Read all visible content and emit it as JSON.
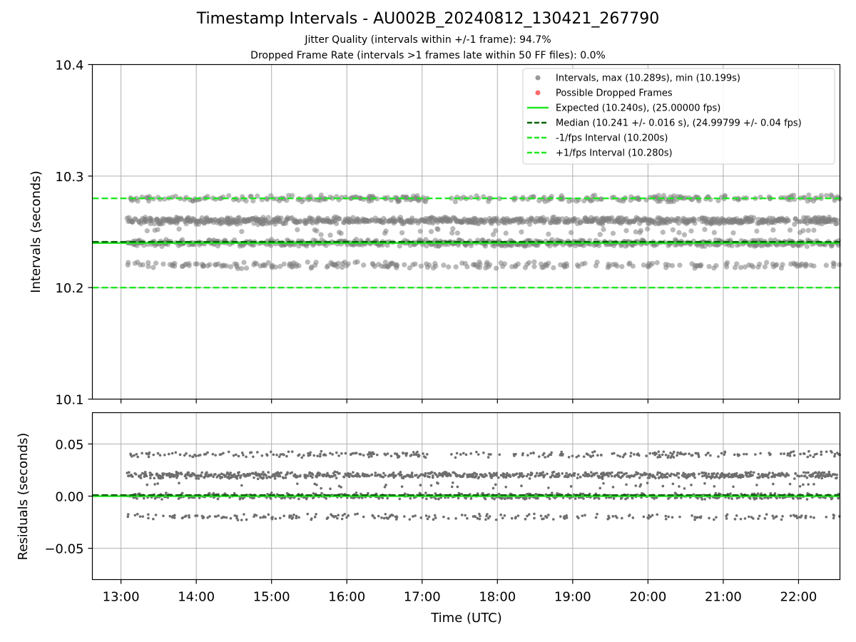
{
  "title": "Timestamp Intervals - AU002B_20240812_130421_267790",
  "subtitle_1": "Jitter Quality (intervals within +/-1 frame): 94.7%",
  "subtitle_2": "Dropped Frame Rate (intervals >1 frames late within 50 FF files): 0.0%",
  "colors": {
    "points": "#808080",
    "dropped": "#ff4d4d",
    "expected": "#1fe81f",
    "median": "#006400",
    "interval_band": "#1fe81f",
    "grid": "#b0b0b0"
  },
  "chart_data": [
    {
      "type": "scatter",
      "panel": "top",
      "xlabel": "",
      "ylabel": "Intervals (seconds)",
      "x_range_hours": [
        12.62,
        22.55
      ],
      "ylim": [
        10.1,
        10.4
      ],
      "yticks": [
        10.1,
        10.2,
        10.3,
        10.4
      ],
      "ytick_labels": [
        "10.1",
        "10.2",
        "10.3",
        "10.4"
      ],
      "grid": true,
      "legend_position": "top-right",
      "legend": [
        {
          "label": "Intervals, max (10.289s), min (10.199s)",
          "kind": "point",
          "color": "#999999"
        },
        {
          "label": "Possible Dropped Frames",
          "kind": "point",
          "color": "#ff6b6b"
        },
        {
          "label": "Expected (10.240s), (25.00000 fps)",
          "kind": "solid",
          "color": "#1fe81f"
        },
        {
          "label": "Median (10.241 +/- 0.016 s), (24.99799 +/- 0.04 fps)",
          "kind": "dashed",
          "color": "#006400"
        },
        {
          "label": "-1/fps Interval (10.200s)",
          "kind": "dashed",
          "color": "#1fe81f"
        },
        {
          "label": "+1/fps Interval (10.280s)",
          "kind": "dashed",
          "color": "#1fe81f"
        }
      ],
      "reference_lines": {
        "expected": 10.24,
        "median": 10.241,
        "minus_interval": 10.2,
        "plus_interval": 10.28
      },
      "point_clusters": [
        {
          "value": 10.26,
          "weight": 0.42
        },
        {
          "value": 10.24,
          "weight": 0.3
        },
        {
          "value": 10.22,
          "weight": 0.12
        },
        {
          "value": 10.28,
          "weight": 0.13
        },
        {
          "value": 10.25,
          "weight": 0.03
        }
      ],
      "point_time_range": [
        13.08,
        22.55
      ],
      "max": 10.289,
      "min": 10.199
    },
    {
      "type": "scatter",
      "panel": "bottom",
      "xlabel": "Time (UTC)",
      "ylabel": "Residuals (seconds)",
      "x_range_hours": [
        12.62,
        22.55
      ],
      "xticks": [
        13,
        14,
        15,
        16,
        17,
        18,
        19,
        20,
        21,
        22
      ],
      "xtick_labels": [
        "13:00",
        "14:00",
        "15:00",
        "16:00",
        "17:00",
        "18:00",
        "19:00",
        "20:00",
        "21:00",
        "22:00"
      ],
      "ylim": [
        -0.08,
        0.08
      ],
      "yticks": [
        -0.05,
        0.0,
        0.05
      ],
      "ytick_labels": [
        "−0.05",
        "0.00",
        "0.05"
      ],
      "grid": true,
      "reference_lines": {
        "expected": 0.0,
        "median": 0.001
      },
      "point_clusters": [
        {
          "value": 0.02,
          "weight": 0.42
        },
        {
          "value": 0.0,
          "weight": 0.3
        },
        {
          "value": -0.02,
          "weight": 0.12
        },
        {
          "value": 0.04,
          "weight": 0.13
        },
        {
          "value": 0.01,
          "weight": 0.03
        }
      ]
    }
  ]
}
